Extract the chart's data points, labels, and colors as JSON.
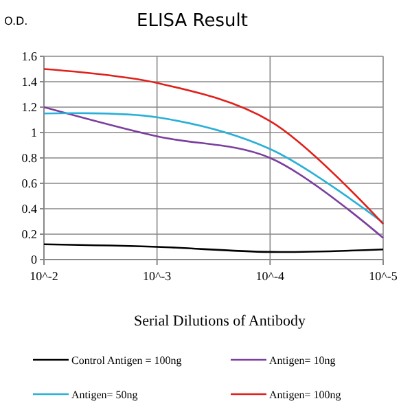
{
  "chart_data": {
    "type": "line",
    "title": "ELISA Result",
    "ylabel": "O.D.",
    "xlabel": "Serial Dilutions of Antibody",
    "categories": [
      "10^-2",
      "10^-3",
      "10^-4",
      "10^-5"
    ],
    "series": [
      {
        "name": "Control Antigen = 100ng",
        "color": "#000000",
        "values": [
          0.12,
          0.1,
          0.06,
          0.08
        ]
      },
      {
        "name": "Antigen= 10ng",
        "color": "#7b3f9e",
        "values": [
          1.2,
          0.97,
          0.8,
          0.17
        ]
      },
      {
        "name": "Antigen= 50ng",
        "color": "#2ab0d8",
        "values": [
          1.15,
          1.12,
          0.87,
          0.29
        ]
      },
      {
        "name": "Antigen= 100ng",
        "color": "#e0201b",
        "values": [
          1.5,
          1.39,
          1.09,
          0.28
        ]
      }
    ],
    "ylim": [
      0,
      1.6
    ],
    "yticks": [
      0,
      0.2,
      0.4,
      0.6,
      0.8,
      1,
      1.2,
      1.4,
      1.6
    ],
    "grid": true,
    "legend": "bottom",
    "marker": "none",
    "line_style": "solid"
  }
}
